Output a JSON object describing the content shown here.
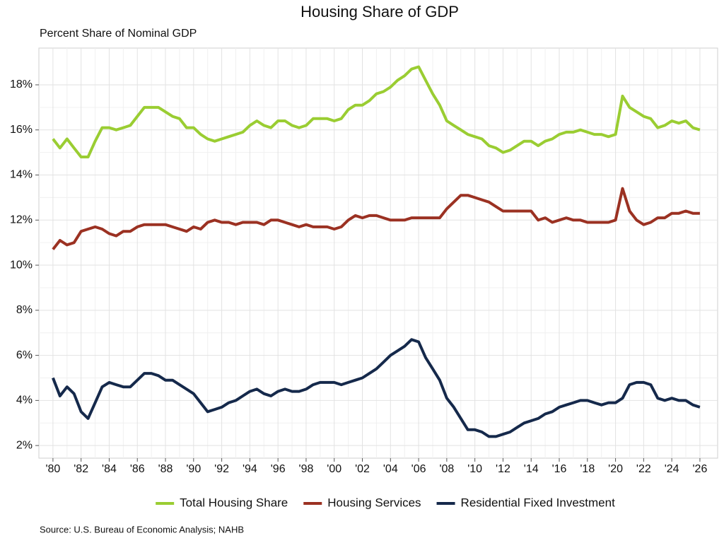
{
  "chart_data": {
    "type": "line",
    "title": "Housing Share of GDP",
    "subtitle": "Percent Share of Nominal GDP",
    "source": "Source: U.S. Bureau of Economic Analysis; NAHB",
    "x": [
      1980,
      1980.5,
      1981,
      1981.5,
      1982,
      1982.5,
      1983,
      1983.5,
      1984,
      1984.5,
      1985,
      1985.5,
      1986,
      1986.5,
      1987,
      1987.5,
      1988,
      1988.5,
      1989,
      1989.5,
      1990,
      1990.5,
      1991,
      1991.5,
      1992,
      1992.5,
      1993,
      1993.5,
      1994,
      1994.5,
      1995,
      1995.5,
      1996,
      1996.5,
      1997,
      1997.5,
      1998,
      1998.5,
      1999,
      1999.5,
      2000,
      2000.5,
      2001,
      2001.5,
      2002,
      2002.5,
      2003,
      2003.5,
      2004,
      2004.5,
      2005,
      2005.5,
      2006,
      2006.5,
      2007,
      2007.5,
      2008,
      2008.5,
      2009,
      2009.5,
      2010,
      2010.5,
      2011,
      2011.5,
      2012,
      2012.5,
      2013,
      2013.5,
      2014,
      2014.5,
      2015,
      2015.5,
      2016,
      2016.5,
      2017,
      2017.5,
      2018,
      2018.5,
      2019,
      2019.5,
      2020,
      2020.5,
      2021,
      2021.5,
      2022,
      2022.5,
      2023,
      2023.5,
      2024,
      2024.5,
      2025,
      2025.5,
      2026
    ],
    "series": [
      {
        "name": "Total Housing Share",
        "color": "#9acd32",
        "values": [
          15.6,
          15.2,
          15.6,
          15.2,
          14.8,
          14.8,
          15.5,
          16.1,
          16.1,
          16.0,
          16.1,
          16.2,
          16.6,
          17.0,
          17.0,
          17.0,
          16.8,
          16.6,
          16.5,
          16.1,
          16.1,
          15.8,
          15.6,
          15.5,
          15.6,
          15.7,
          15.8,
          15.9,
          16.2,
          16.4,
          16.2,
          16.1,
          16.4,
          16.4,
          16.2,
          16.1,
          16.2,
          16.5,
          16.5,
          16.5,
          16.4,
          16.5,
          16.9,
          17.1,
          17.1,
          17.3,
          17.6,
          17.7,
          17.9,
          18.2,
          18.4,
          18.7,
          18.8,
          18.2,
          17.6,
          17.1,
          16.4,
          16.2,
          16.0,
          15.8,
          15.7,
          15.6,
          15.3,
          15.2,
          15.0,
          15.1,
          15.3,
          15.5,
          15.5,
          15.3,
          15.5,
          15.6,
          15.8,
          15.9,
          15.9,
          16.0,
          15.9,
          15.8,
          15.8,
          15.7,
          15.8,
          17.5,
          17.0,
          16.8,
          16.6,
          16.5,
          16.1,
          16.2,
          16.4,
          16.3,
          16.4,
          16.1,
          16.0
        ]
      },
      {
        "name": "Housing Services",
        "color": "#9b3122",
        "values": [
          10.7,
          11.1,
          10.9,
          11.0,
          11.5,
          11.6,
          11.7,
          11.6,
          11.4,
          11.3,
          11.5,
          11.5,
          11.7,
          11.8,
          11.8,
          11.8,
          11.8,
          11.7,
          11.6,
          11.5,
          11.7,
          11.6,
          11.9,
          12.0,
          11.9,
          11.9,
          11.8,
          11.9,
          11.9,
          11.9,
          11.8,
          12.0,
          12.0,
          11.9,
          11.8,
          11.7,
          11.8,
          11.7,
          11.7,
          11.7,
          11.6,
          11.7,
          12.0,
          12.2,
          12.1,
          12.2,
          12.2,
          12.1,
          12.0,
          12.0,
          12.0,
          12.1,
          12.1,
          12.1,
          12.1,
          12.1,
          12.5,
          12.8,
          13.1,
          13.1,
          13.0,
          12.9,
          12.8,
          12.6,
          12.4,
          12.4,
          12.4,
          12.4,
          12.4,
          12.0,
          12.1,
          11.9,
          12.0,
          12.1,
          12.0,
          12.0,
          11.9,
          11.9,
          11.9,
          11.9,
          12.0,
          13.4,
          12.4,
          12.0,
          11.8,
          11.9,
          12.1,
          12.1,
          12.3,
          12.3,
          12.4,
          12.3,
          12.3
        ]
      },
      {
        "name": "Residential Fixed Investment",
        "color": "#15294b",
        "values": [
          5.0,
          4.2,
          4.6,
          4.3,
          3.5,
          3.2,
          3.9,
          4.6,
          4.8,
          4.7,
          4.6,
          4.6,
          4.9,
          5.2,
          5.2,
          5.1,
          4.9,
          4.9,
          4.7,
          4.5,
          4.3,
          3.9,
          3.5,
          3.6,
          3.7,
          3.9,
          4.0,
          4.2,
          4.4,
          4.5,
          4.3,
          4.2,
          4.4,
          4.5,
          4.4,
          4.4,
          4.5,
          4.7,
          4.8,
          4.8,
          4.8,
          4.7,
          4.8,
          4.9,
          5.0,
          5.2,
          5.4,
          5.7,
          6.0,
          6.2,
          6.4,
          6.7,
          6.6,
          5.9,
          5.4,
          4.9,
          4.1,
          3.7,
          3.2,
          2.7,
          2.7,
          2.6,
          2.4,
          2.4,
          2.5,
          2.6,
          2.8,
          3.0,
          3.1,
          3.2,
          3.4,
          3.5,
          3.7,
          3.8,
          3.9,
          4.0,
          4.0,
          3.9,
          3.8,
          3.9,
          3.9,
          4.1,
          4.7,
          4.8,
          4.8,
          4.7,
          4.1,
          4.0,
          4.1,
          4.0,
          4.0,
          3.8,
          3.7
        ]
      }
    ],
    "xlim": [
      1979,
      2027.26
    ],
    "ylim": [
      1.44,
      19.63
    ],
    "xticks": [
      {
        "value": 1980,
        "label": "'80"
      },
      {
        "value": 1982,
        "label": "'82"
      },
      {
        "value": 1984,
        "label": "'84"
      },
      {
        "value": 1986,
        "label": "'86"
      },
      {
        "value": 1988,
        "label": "'88"
      },
      {
        "value": 1990,
        "label": "'90"
      },
      {
        "value": 1992,
        "label": "'92"
      },
      {
        "value": 1994,
        "label": "'94"
      },
      {
        "value": 1996,
        "label": "'96"
      },
      {
        "value": 1998,
        "label": "'98"
      },
      {
        "value": 2000,
        "label": "'00"
      },
      {
        "value": 2002,
        "label": "'02"
      },
      {
        "value": 2004,
        "label": "'04"
      },
      {
        "value": 2006,
        "label": "'06"
      },
      {
        "value": 2008,
        "label": "'08"
      },
      {
        "value": 2010,
        "label": "'10"
      },
      {
        "value": 2012,
        "label": "'12"
      },
      {
        "value": 2014,
        "label": "'14"
      },
      {
        "value": 2016,
        "label": "'16"
      },
      {
        "value": 2018,
        "label": "'18"
      },
      {
        "value": 2020,
        "label": "'20"
      },
      {
        "value": 2022,
        "label": "'22"
      },
      {
        "value": 2024,
        "label": "'24"
      },
      {
        "value": 2026,
        "label": "'26"
      }
    ],
    "yticks": [
      {
        "value": 2,
        "label": "2%"
      },
      {
        "value": 4,
        "label": "4%"
      },
      {
        "value": 6,
        "label": "6%"
      },
      {
        "value": 8,
        "label": "8%"
      },
      {
        "value": 10,
        "label": "10%"
      },
      {
        "value": 12,
        "label": "12%"
      },
      {
        "value": 14,
        "label": "14%"
      },
      {
        "value": 16,
        "label": "16%"
      },
      {
        "value": 18,
        "label": "18%"
      }
    ],
    "grid": true,
    "legend": "bottom"
  }
}
